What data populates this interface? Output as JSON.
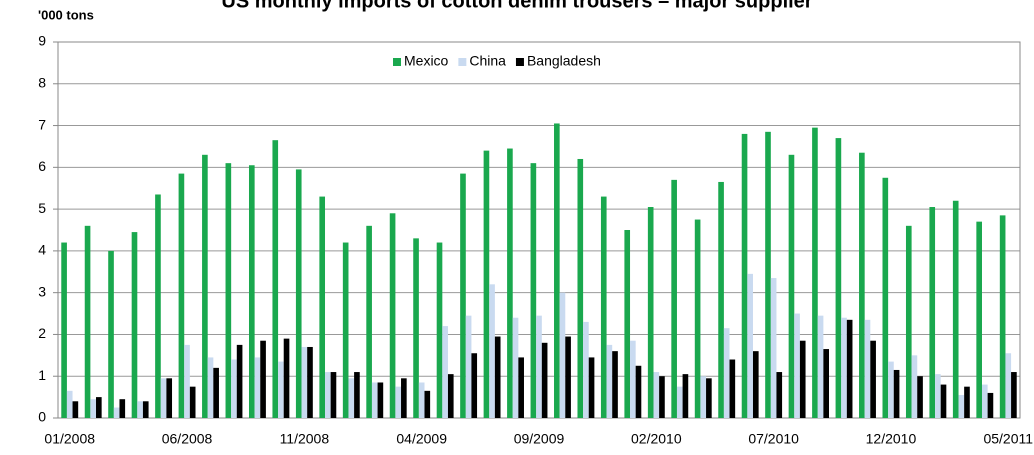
{
  "chart_data": {
    "type": "bar",
    "title": "US monthly imports of cotton denim trousers – major supplier",
    "y_axis_label": "'000 tons",
    "categories": [
      "01/2008",
      null,
      null,
      null,
      null,
      "06/2008",
      null,
      null,
      null,
      null,
      "11/2008",
      null,
      null,
      null,
      null,
      "04/2009",
      null,
      null,
      null,
      null,
      "09/2009",
      null,
      null,
      null,
      null,
      "02/2010",
      null,
      null,
      null,
      null,
      "07/2010",
      null,
      null,
      null,
      null,
      "12/2010",
      null,
      null,
      null,
      null,
      "05/2011"
    ],
    "series": [
      {
        "name": "Mexico",
        "color": "#1aa84e",
        "values": [
          4.2,
          4.6,
          4.0,
          4.45,
          5.35,
          5.85,
          6.3,
          6.1,
          6.05,
          6.65,
          5.95,
          5.3,
          4.2,
          4.6,
          4.9,
          4.3,
          4.2,
          5.85,
          6.4,
          6.45,
          6.1,
          7.05,
          6.2,
          5.3,
          4.5,
          5.05,
          5.7,
          4.75,
          5.65,
          6.8,
          6.85,
          6.3,
          6.95,
          6.7,
          6.35,
          5.75,
          4.6,
          5.05,
          5.2,
          4.7,
          4.85
        ]
      },
      {
        "name": "China",
        "color": "#c9daf0",
        "values": [
          0.65,
          0.45,
          0.25,
          0.4,
          0.95,
          1.75,
          1.45,
          1.4,
          1.45,
          1.35,
          1.7,
          1.1,
          0.95,
          0.85,
          0.75,
          0.85,
          2.2,
          2.45,
          3.2,
          2.4,
          2.45,
          3.0,
          2.3,
          1.75,
          1.85,
          1.1,
          0.75,
          1.0,
          2.15,
          3.45,
          3.35,
          2.5,
          2.45,
          2.4,
          2.35,
          1.35,
          1.5,
          1.05,
          0.55,
          0.8,
          1.55
        ]
      },
      {
        "name": "Bangladesh",
        "color": "#000000",
        "values": [
          0.4,
          0.5,
          0.45,
          0.4,
          0.95,
          0.75,
          1.2,
          1.75,
          1.85,
          1.9,
          1.7,
          1.1,
          1.1,
          0.85,
          0.95,
          0.65,
          1.05,
          1.55,
          1.95,
          1.45,
          1.8,
          1.95,
          1.45,
          1.6,
          1.25,
          1.0,
          1.05,
          0.95,
          1.4,
          1.6,
          1.1,
          1.85,
          1.65,
          2.35,
          1.85,
          1.15,
          1.0,
          0.8,
          0.75,
          0.6,
          1.1
        ]
      }
    ],
    "ylim": [
      0,
      9
    ],
    "yticks": [
      0,
      1,
      2,
      3,
      4,
      5,
      6,
      7,
      8,
      9
    ],
    "grid": true,
    "legend": "top"
  }
}
